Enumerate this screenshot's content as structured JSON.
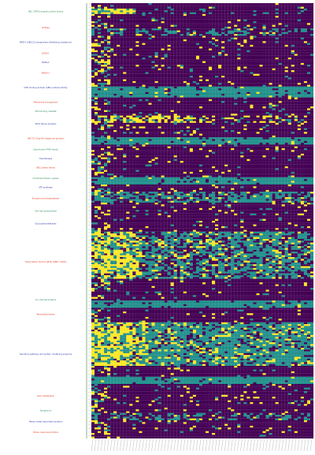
{
  "chart_data": {
    "type": "heatmap",
    "title": "",
    "xlabel": "",
    "ylabel": "",
    "legend": "none",
    "colors": {
      "absent": "#440154",
      "partial": "#21908C",
      "present": "#FDE725",
      "row_axis": "#3a7d3a",
      "font_text": "#333333"
    },
    "value_levels": [
      0,
      1,
      2
    ],
    "n_columns": 70,
    "n_rows": 240,
    "groups": [
      {
        "label": "ABC (ATP) transport protein family",
        "color": "#2e8b57",
        "rows": [
          0,
          10
        ]
      },
      {
        "label": "GTPase",
        "color": "#e23a1e",
        "rows": [
          10,
          18
        ]
      },
      {
        "label": "MRP-2 (ABCC2) transporters (Multidrug resistance)",
        "color": "#2b3aa8",
        "rows": [
          18,
          26
        ]
      },
      {
        "label": "BAKK-1",
        "color": "#e23a1e",
        "rows": [
          26,
          30
        ]
      },
      {
        "label": "BAKK-2",
        "color": "#2b3aa8",
        "rows": [
          30,
          36
        ]
      },
      {
        "label": "MRDA-1",
        "color": "#e23a1e",
        "rows": [
          36,
          42
        ]
      },
      {
        "label": "CHD binding domain (ABC) proteins family",
        "color": "#2b3aa8",
        "rows": [
          42,
          52
        ]
      },
      {
        "label": "Membrane transporters",
        "color": "#e23a1e",
        "rows": [
          52,
          58
        ]
      },
      {
        "label": "ATP-binding cassette",
        "color": "#2e8b57",
        "rows": [
          58,
          62
        ]
      },
      {
        "label": "PKC1 family proteins",
        "color": "#2b3aa8",
        "rows": [
          62,
          72
        ]
      },
      {
        "label": "HSP 70 / Hsp 90 chaperone proteins",
        "color": "#e23a1e",
        "rows": [
          72,
          78
        ]
      },
      {
        "label": "Cytochrome P450 family",
        "color": "#2e8b57",
        "rows": [
          78,
          84
        ]
      },
      {
        "label": "Transferases",
        "color": "#2b3aa8",
        "rows": [
          84,
          88
        ]
      },
      {
        "label": "ABC protein family",
        "color": "#e23a1e",
        "rows": [
          88,
          94
        ]
      },
      {
        "label": "Oxidoreductases / Lyases",
        "color": "#2e8b57",
        "rows": [
          94,
          100
        ]
      },
      {
        "label": "ATP synthase",
        "color": "#2b3aa8",
        "rows": [
          100,
          104
        ]
      },
      {
        "label": "Kinases and phosphatases",
        "color": "#e23a1e",
        "rows": [
          104,
          112
        ]
      },
      {
        "label": "Cell wall biosynthesis",
        "color": "#2e8b57",
        "rows": [
          112,
          118
        ]
      },
      {
        "label": "Glycosyltransferases",
        "color": "#2b3aa8",
        "rows": [
          118,
          126
        ]
      },
      {
        "label": "Transcription factors (MYB, WRKY, bHLH)",
        "color": "#e23a1e",
        "rows": [
          126,
          160
        ]
      },
      {
        "label": "Ion channel proteins",
        "color": "#2e8b57",
        "rows": [
          160,
          168
        ]
      },
      {
        "label": "Peroxidase family",
        "color": "#e23a1e",
        "rows": [
          168,
          176
        ]
      },
      {
        "label": "Secretory pathway and protein modifying enzymes",
        "color": "#2b3aa8",
        "rows": [
          176,
          212
        ]
      },
      {
        "label": "Lipid metabolism",
        "color": "#e23a1e",
        "rows": [
          212,
          222
        ]
      },
      {
        "label": "Aquaporins",
        "color": "#2e8b57",
        "rows": [
          222,
          228
        ]
      },
      {
        "label": "Heavy metal associated proteins",
        "color": "#2b3aa8",
        "rows": [
          228,
          234
        ]
      },
      {
        "label": "Stress response proteins",
        "color": "#e23a1e",
        "rows": [
          234,
          240
        ]
      }
    ],
    "band_rows": [
      {
        "rows": [
          0,
          3
        ],
        "pattern": "sparse"
      },
      {
        "rows": [
          3,
          6
        ],
        "pattern": "yellow-teal-early"
      },
      {
        "rows": [
          14,
          18
        ],
        "pattern": "teal-sparse"
      },
      {
        "rows": [
          46,
          52
        ],
        "pattern": "teal-full"
      },
      {
        "rows": [
          62,
          66
        ],
        "pattern": "yellow-dense"
      },
      {
        "rows": [
          74,
          78
        ],
        "pattern": "teal-full"
      },
      {
        "rows": [
          96,
          100
        ],
        "pattern": "teal-full"
      },
      {
        "rows": [
          104,
          110
        ],
        "pattern": "teal-mix"
      },
      {
        "rows": [
          126,
          152
        ],
        "pattern": "yellow-teal-mixed"
      },
      {
        "rows": [
          164,
          168
        ],
        "pattern": "teal-full"
      },
      {
        "rows": [
          176,
          200
        ],
        "pattern": "teal-yellow-heavy"
      },
      {
        "rows": [
          206,
          210
        ],
        "pattern": "teal-full"
      },
      {
        "rows": [
          226,
          230
        ],
        "pattern": "teal-sparse"
      }
    ]
  }
}
